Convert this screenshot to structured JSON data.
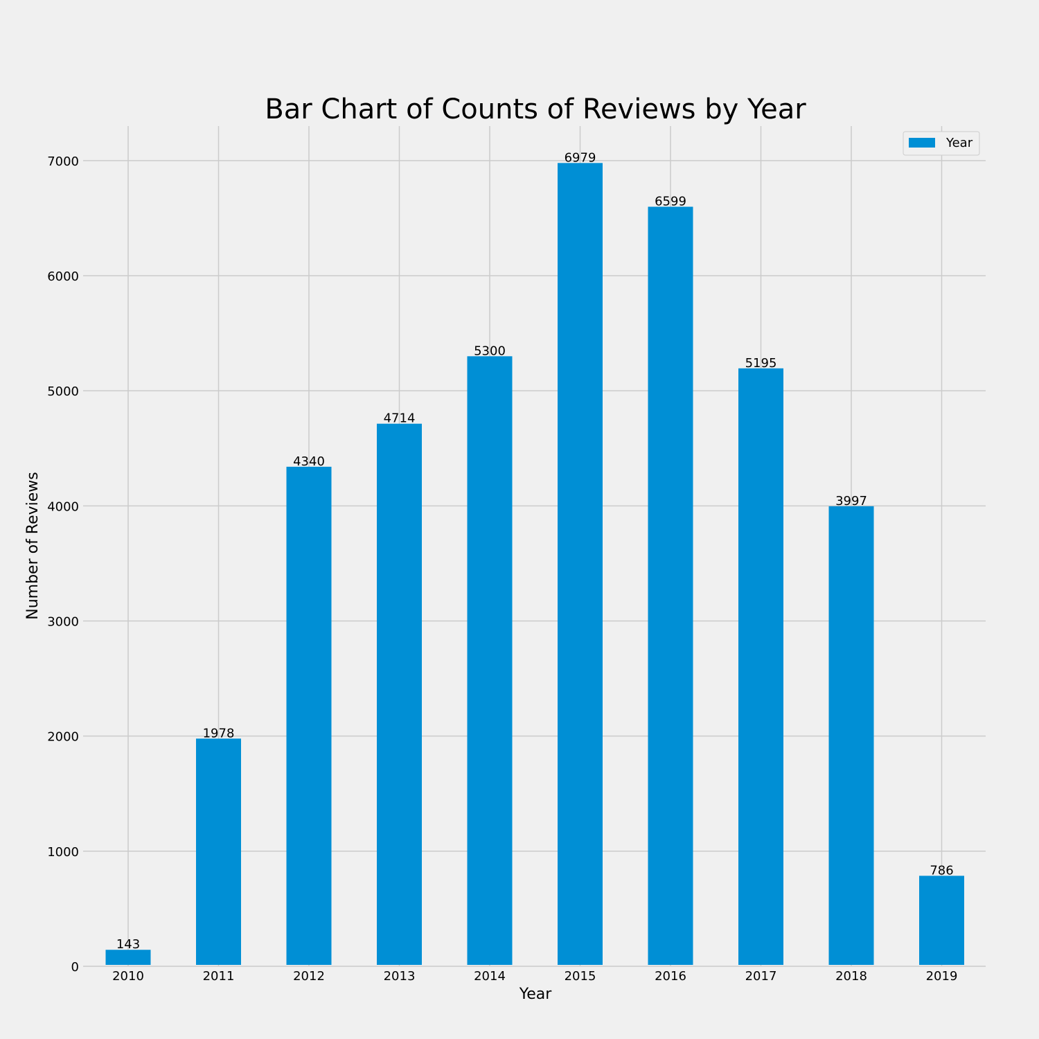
{
  "chart_data": {
    "type": "bar",
    "title": "Bar Chart of Counts of Reviews by Year",
    "xlabel": "Year",
    "ylabel": "Number of Reviews",
    "categories": [
      "2010",
      "2011",
      "2012",
      "2013",
      "2014",
      "2015",
      "2016",
      "2017",
      "2018",
      "2019"
    ],
    "series": [
      {
        "name": "Year",
        "values": [
          143,
          1978,
          4340,
          4714,
          5300,
          6979,
          6599,
          5195,
          3997,
          786
        ]
      }
    ],
    "ylim": [
      0,
      7300
    ],
    "yticks": [
      "0",
      "1000",
      "2000",
      "3000",
      "4000",
      "5000",
      "6000",
      "7000"
    ],
    "grid": true,
    "legend_position": "top-right",
    "colors": {
      "bar": "#008fd5",
      "background": "#f0f0f0",
      "grid": "#cbcbcb"
    }
  }
}
